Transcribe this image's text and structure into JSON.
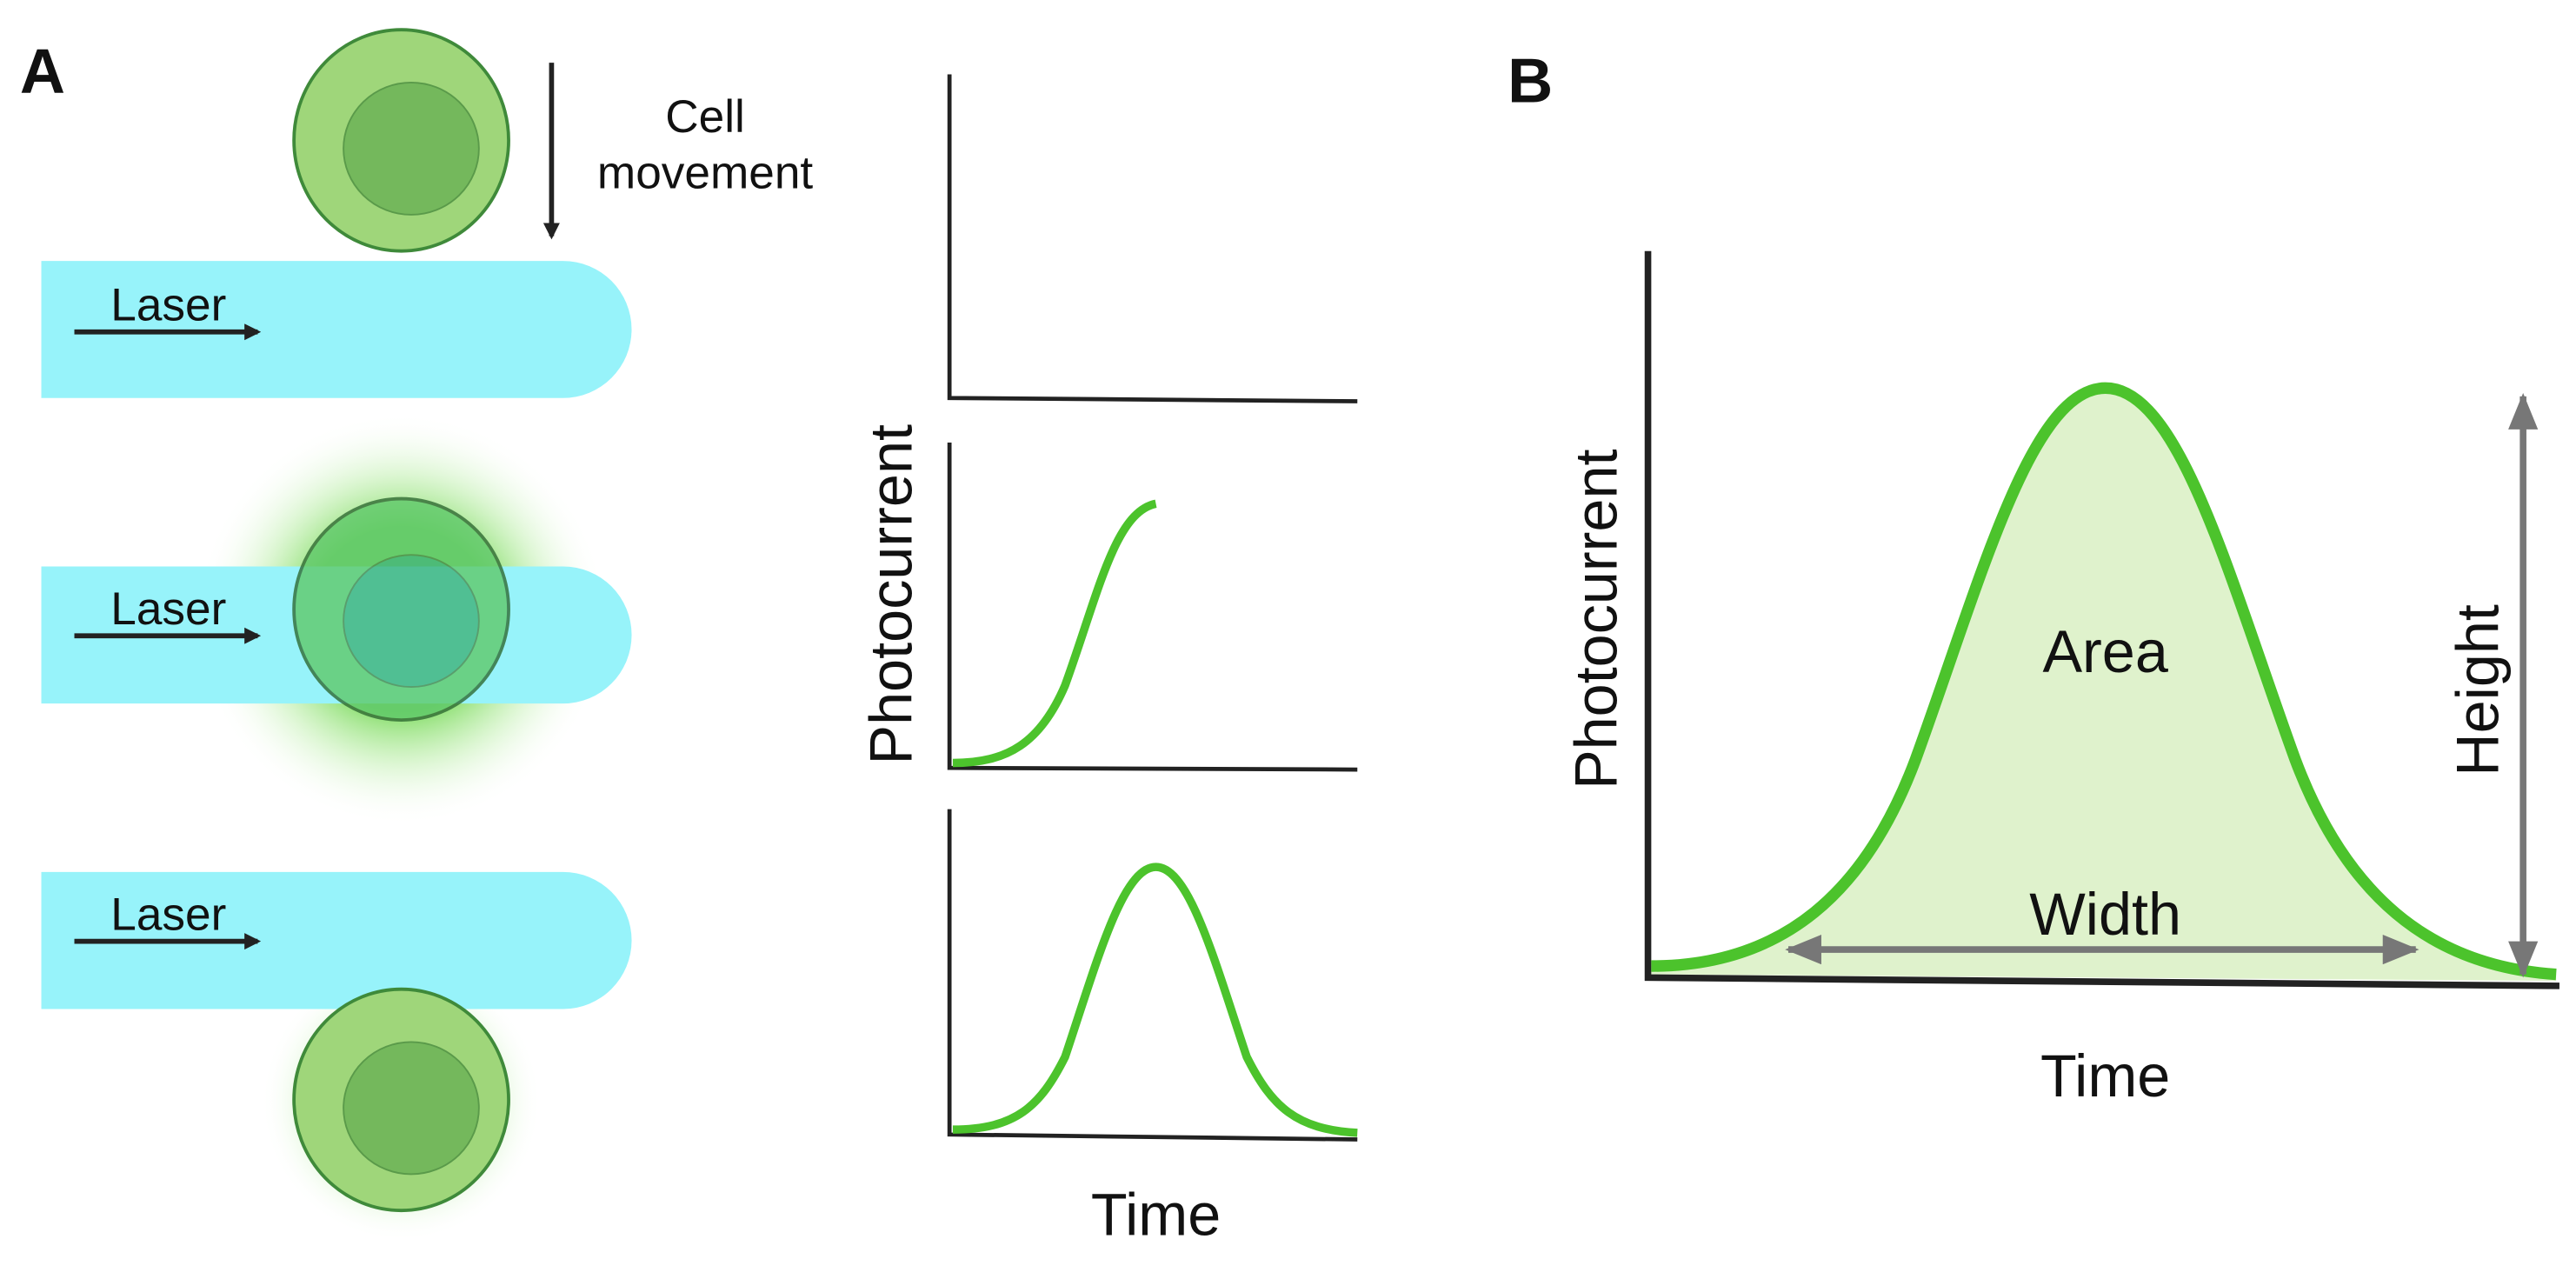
{
  "panel_a": {
    "label": "A",
    "cell_movement": [
      "Cell",
      "movement"
    ],
    "lasers": [
      "Laser",
      "Laser",
      "Laser"
    ],
    "y_axis_label": "Photocurrent",
    "x_axis_label": "Time"
  },
  "panel_b": {
    "label": "B",
    "y_axis_label": "Photocurrent",
    "x_axis_label": "Time",
    "area_label": "Area",
    "width_label": "Width",
    "height_label": "Height"
  }
}
